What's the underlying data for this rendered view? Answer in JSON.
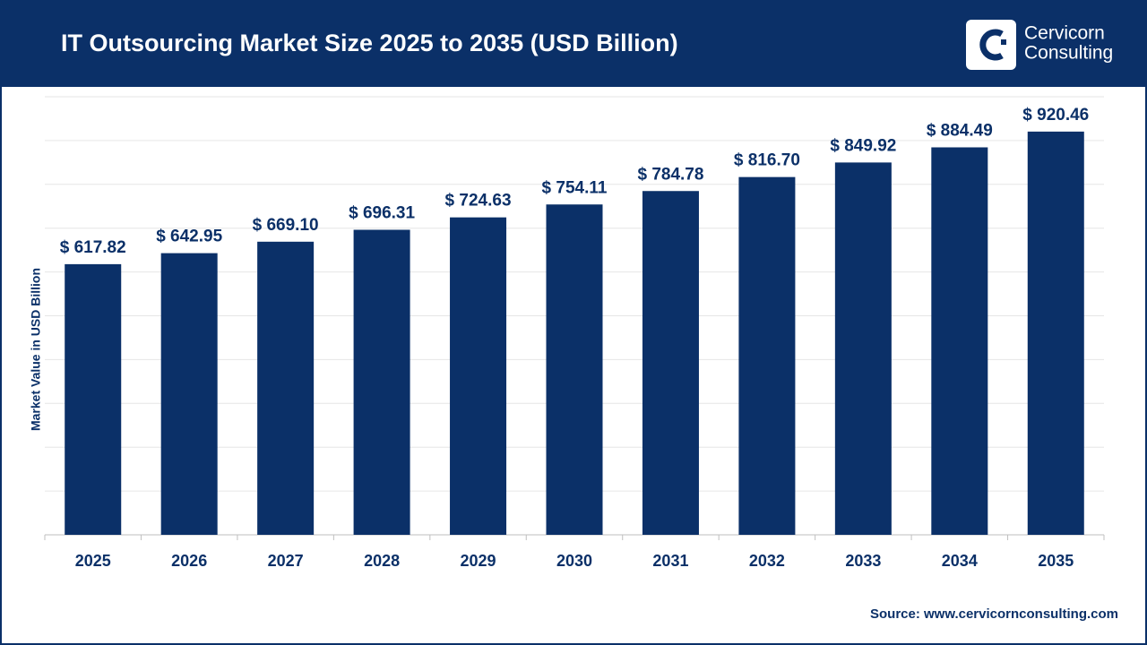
{
  "chart_data": {
    "type": "bar",
    "title": "IT Outsourcing Market Size 2025 to 2035 (USD Billion)",
    "y_label": "Market Value in USD Billion",
    "categories": [
      "2025",
      "2026",
      "2027",
      "2028",
      "2029",
      "2030",
      "2031",
      "2032",
      "2033",
      "2034",
      "2035"
    ],
    "values": [
      617.82,
      642.95,
      669.1,
      696.31,
      724.63,
      754.11,
      784.78,
      816.7,
      849.92,
      884.49,
      920.46
    ],
    "value_labels": [
      "$ 617.82",
      "$ 642.95",
      "$ 669.10",
      "$ 696.31",
      "$ 724.63",
      "$ 754.11",
      "$ 784.78",
      "$ 816.70",
      "$ 849.92",
      "$ 884.49",
      "$ 920.46"
    ],
    "color": "#0b3068",
    "ylim": [
      0,
      1000
    ],
    "yticks": [
      0,
      100,
      200,
      300,
      400,
      500,
      600,
      700,
      800,
      900,
      1000
    ],
    "grid": true,
    "source": "Source: www.cervicornconsulting.com"
  },
  "logo": {
    "line1": "Cervicorn",
    "line2": "Consulting"
  }
}
